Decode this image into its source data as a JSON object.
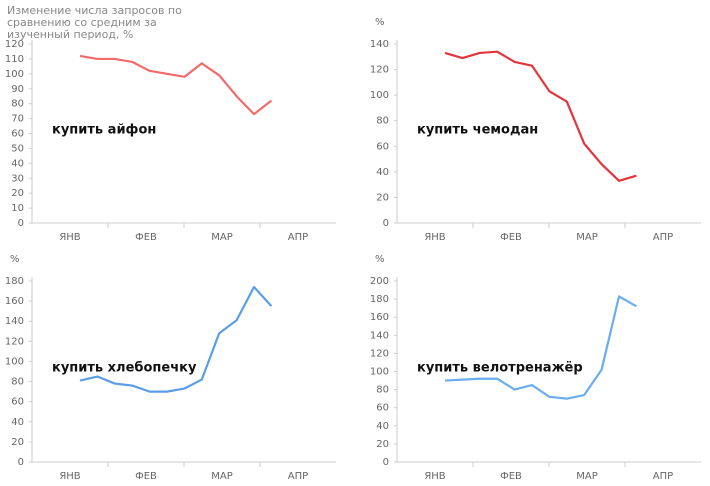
{
  "chart_data": [
    {
      "type": "line",
      "title": "купить айфон",
      "y_label": "Изменение числа запросов по сравнению со средним за изученный период, %",
      "months": [
        "ЯНВ",
        "ФЕВ",
        "МАР",
        "АПР"
      ],
      "color": "#f26b6b",
      "values": [
        112,
        110,
        110,
        108,
        102,
        100,
        98,
        107,
        99,
        85,
        73,
        82
      ],
      "ylim": [
        0,
        120
      ],
      "yticks": [
        0,
        10,
        20,
        30,
        40,
        50,
        60,
        70,
        80,
        90,
        100,
        110,
        120
      ]
    },
    {
      "type": "line",
      "title": "купить чемодан",
      "y_label": "%",
      "months": [
        "ЯНВ",
        "ФЕВ",
        "МАР",
        "АПР"
      ],
      "color": "#e2363c",
      "values": [
        133,
        129,
        133,
        134,
        126,
        123,
        103,
        95,
        62,
        46,
        33,
        37
      ],
      "ylim": [
        0,
        140
      ],
      "yticks": [
        0,
        20,
        40,
        60,
        80,
        100,
        120,
        140
      ]
    },
    {
      "type": "line",
      "title": "купить хлебопечку",
      "y_label": "%",
      "months": [
        "ЯНВ",
        "ФЕВ",
        "МАР",
        "АПР"
      ],
      "color": "#5b9ee8",
      "values": [
        81,
        85,
        78,
        76,
        70,
        70,
        73,
        82,
        128,
        141,
        174,
        155
      ],
      "ylim": [
        0,
        180
      ],
      "yticks": [
        0,
        20,
        40,
        60,
        80,
        100,
        120,
        140,
        160,
        180
      ]
    },
    {
      "type": "line",
      "title": "купить велотренажёр",
      "y_label": "%",
      "months": [
        "ЯНВ",
        "ФЕВ",
        "МАР",
        "АПР"
      ],
      "color": "#6aaef0",
      "values": [
        90,
        91,
        92,
        92,
        80,
        85,
        72,
        70,
        74,
        102,
        183,
        172
      ],
      "ylim": [
        0,
        200
      ],
      "yticks": [
        0,
        20,
        40,
        60,
        80,
        100,
        120,
        140,
        160,
        180,
        200
      ]
    }
  ]
}
